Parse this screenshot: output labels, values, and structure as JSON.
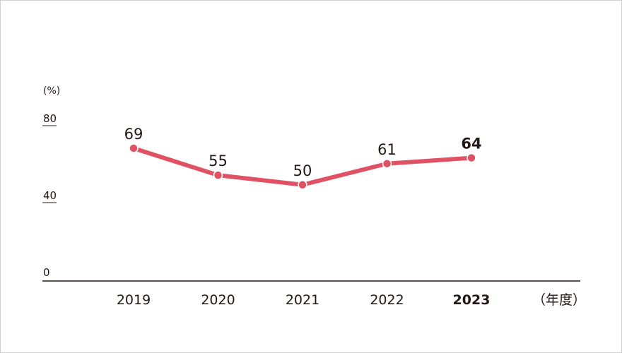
{
  "chart_data": {
    "type": "line",
    "categories": [
      "2019",
      "2020",
      "2021",
      "2022",
      "2023"
    ],
    "series": [
      {
        "values": [
          69,
          55,
          50,
          61,
          64
        ]
      }
    ],
    "ylabel": "(%)",
    "xlabel": "（年度）",
    "yticks": [
      "0",
      "40",
      "80"
    ],
    "ylim": [
      0,
      80
    ],
    "grid": false,
    "highlight_category": "2023",
    "line_color": "#e05263",
    "text_color": "#231815",
    "axis_color": "#231815"
  }
}
